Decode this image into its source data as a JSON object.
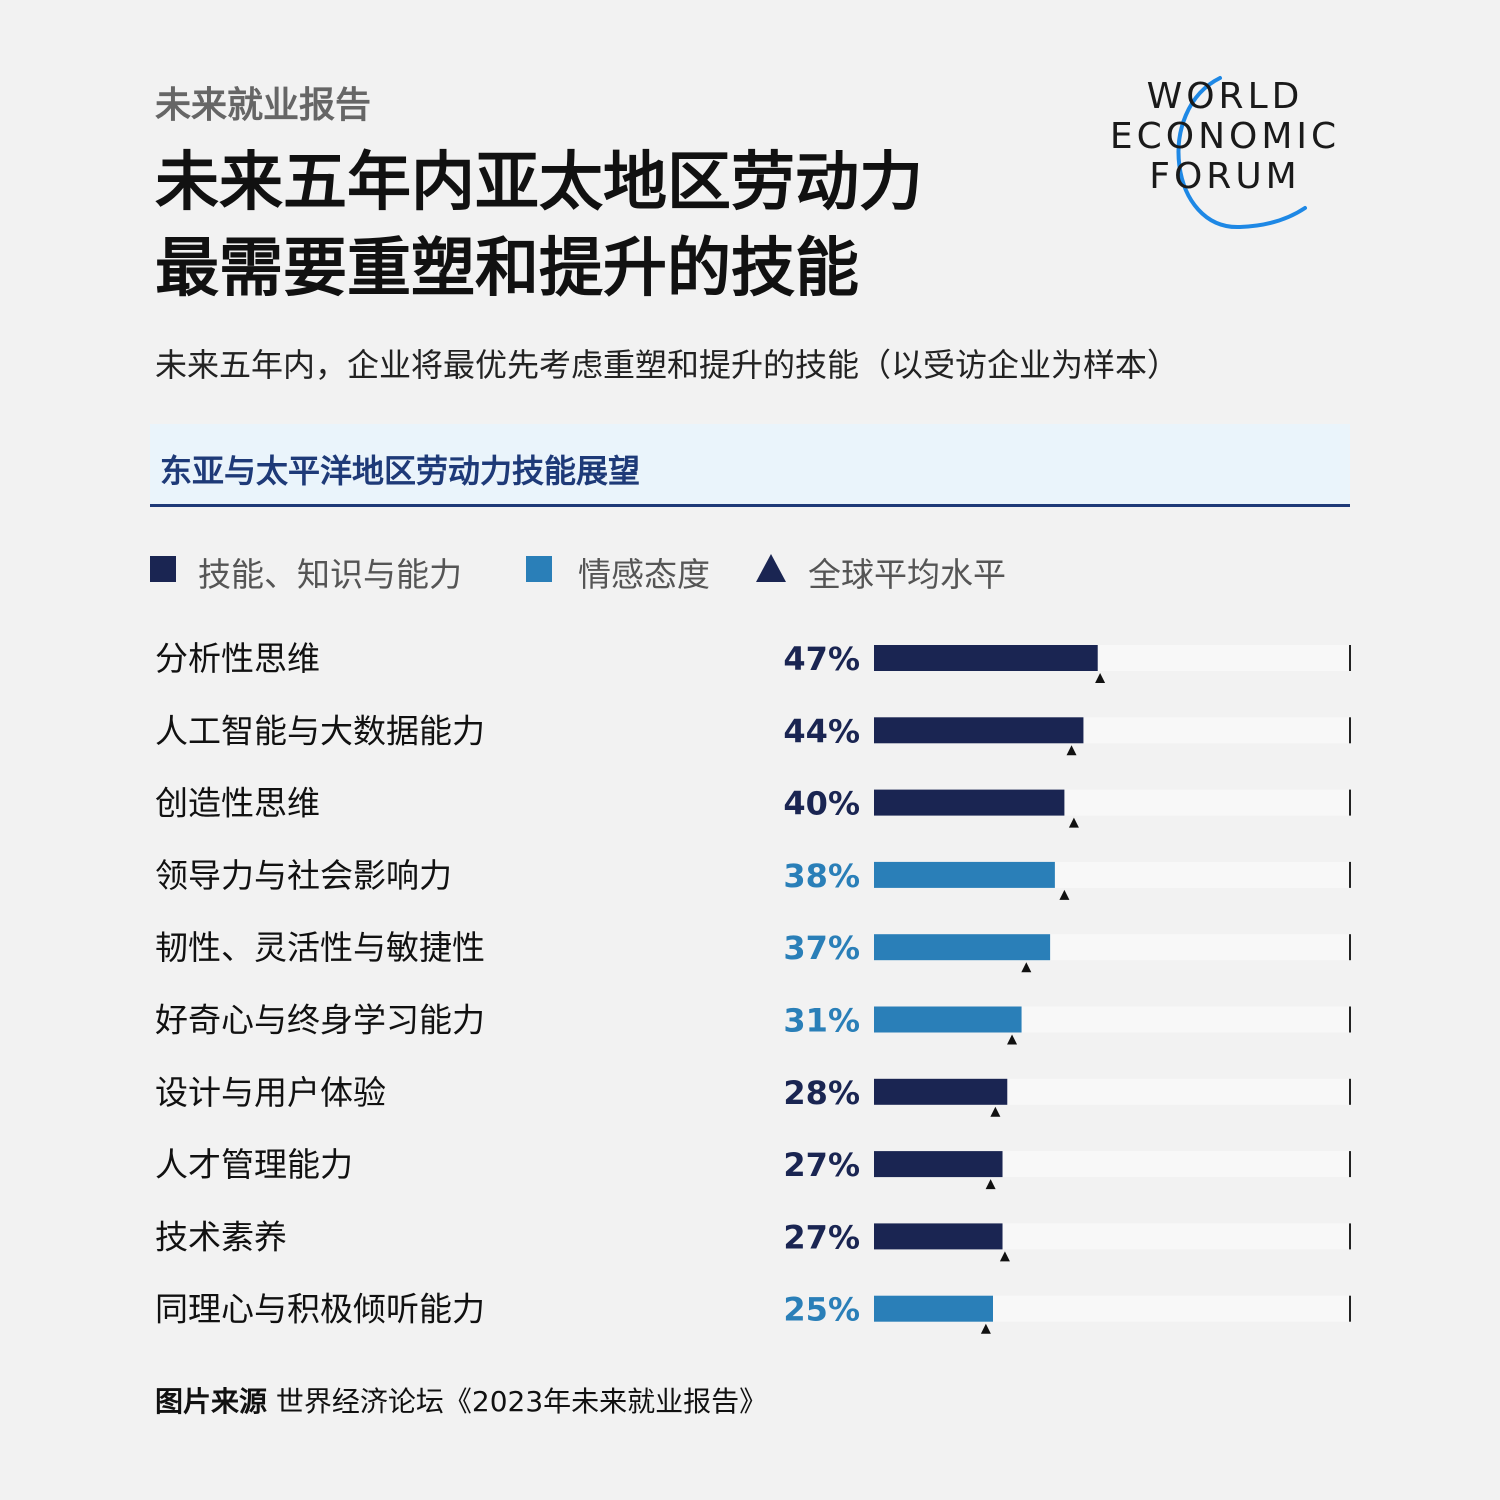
{
  "header": {
    "kicker": "未来就业报告",
    "title_line1": "未来五年内亚太地区劳动力",
    "title_line2": "最需要重塑和提升的技能",
    "subtitle": "未来五年内，企业将最优先考虑重塑和提升的技能（以受访企业为样本）"
  },
  "logo": {
    "line1": "WORLD",
    "line2": "ECONOMIC",
    "line3": "FORUM",
    "arc_color": "#1e88e5"
  },
  "panel": {
    "heading": "东亚与太平洋地区劳动力技能展望"
  },
  "legend": {
    "items": [
      {
        "label": "技能、知识与能力",
        "color": "#1a2552",
        "shape": "square"
      },
      {
        "label": "情感态度",
        "color": "#2a7fb8",
        "shape": "square"
      },
      {
        "label": "全球平均水平",
        "color": "#1a2552",
        "shape": "triangle"
      }
    ]
  },
  "chart_data": {
    "type": "bar",
    "orientation": "horizontal",
    "title": "东亚与太平洋地区劳动力技能展望",
    "xlim": [
      0,
      100
    ],
    "unit": "%",
    "colors": {
      "技能、知识与能力": "#1a2552",
      "情感态度": "#2a7fb8",
      "track": "#f8f8f8"
    },
    "categories": [
      "分析性思维",
      "人工智能与大数据能力",
      "创造性思维",
      "领导力与社会影响力",
      "韧性、灵活性与敏捷性",
      "好奇心与终身学习能力",
      "设计与用户体验",
      "人才管理能力",
      "技术素养",
      "同理心与积极倾听能力"
    ],
    "values": [
      47,
      44,
      40,
      38,
      37,
      31,
      28,
      27,
      27,
      25
    ],
    "labels": [
      "47%",
      "44%",
      "40%",
      "38%",
      "37%",
      "31%",
      "28%",
      "27%",
      "27%",
      "25%"
    ],
    "groups": [
      "技能、知识与能力",
      "技能、知识与能力",
      "技能、知识与能力",
      "情感态度",
      "情感态度",
      "情感态度",
      "技能、知识与能力",
      "技能、知识与能力",
      "技能、知识与能力",
      "情感态度"
    ],
    "global_average": [
      47.5,
      41.5,
      42,
      40,
      32,
      29,
      25.5,
      24.5,
      27.5,
      23.5
    ],
    "legend": [
      "技能、知识与能力",
      "情感态度",
      "全球平均水平"
    ]
  },
  "footer": {
    "source_label": "图片来源",
    "source_text": " 世界经济论坛《2023年未来就业报告》"
  }
}
